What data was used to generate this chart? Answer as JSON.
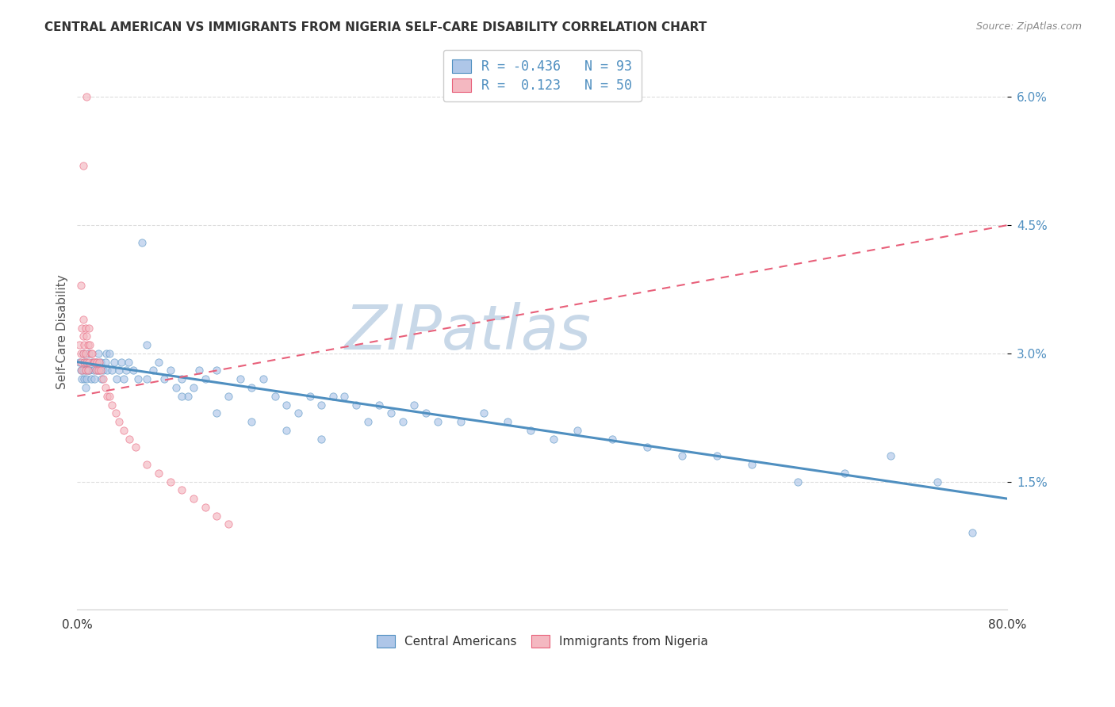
{
  "title": "CENTRAL AMERICAN VS IMMIGRANTS FROM NIGERIA SELF-CARE DISABILITY CORRELATION CHART",
  "source": "Source: ZipAtlas.com",
  "ylabel": "Self-Care Disability",
  "ytick_vals": [
    0.015,
    0.03,
    0.045,
    0.06
  ],
  "xlim": [
    0.0,
    0.8
  ],
  "ylim": [
    0.0,
    0.065
  ],
  "legend_entries": [
    {
      "color": "#aec6e8",
      "R": "-0.436",
      "N": "93"
    },
    {
      "color": "#f4b8c1",
      "R": " 0.123",
      "N": "50"
    }
  ],
  "legend_labels": [
    "Central Americans",
    "Immigrants from Nigeria"
  ],
  "blue_scatter_x": [
    0.002,
    0.003,
    0.004,
    0.005,
    0.005,
    0.006,
    0.006,
    0.007,
    0.007,
    0.008,
    0.008,
    0.009,
    0.01,
    0.011,
    0.012,
    0.013,
    0.014,
    0.015,
    0.016,
    0.017,
    0.018,
    0.019,
    0.02,
    0.021,
    0.022,
    0.024,
    0.025,
    0.026,
    0.028,
    0.03,
    0.032,
    0.034,
    0.036,
    0.038,
    0.04,
    0.042,
    0.044,
    0.048,
    0.052,
    0.056,
    0.06,
    0.065,
    0.07,
    0.075,
    0.08,
    0.085,
    0.09,
    0.095,
    0.1,
    0.105,
    0.11,
    0.12,
    0.13,
    0.14,
    0.15,
    0.16,
    0.17,
    0.18,
    0.19,
    0.2,
    0.21,
    0.22,
    0.23,
    0.24,
    0.25,
    0.26,
    0.27,
    0.28,
    0.29,
    0.3,
    0.31,
    0.33,
    0.35,
    0.37,
    0.39,
    0.41,
    0.43,
    0.46,
    0.49,
    0.52,
    0.55,
    0.58,
    0.62,
    0.66,
    0.7,
    0.74,
    0.77,
    0.06,
    0.09,
    0.12,
    0.15,
    0.18,
    0.21
  ],
  "blue_scatter_y": [
    0.029,
    0.028,
    0.027,
    0.03,
    0.028,
    0.027,
    0.029,
    0.028,
    0.026,
    0.029,
    0.027,
    0.028,
    0.03,
    0.028,
    0.027,
    0.029,
    0.028,
    0.027,
    0.029,
    0.028,
    0.03,
    0.028,
    0.029,
    0.027,
    0.028,
    0.029,
    0.03,
    0.028,
    0.03,
    0.028,
    0.029,
    0.027,
    0.028,
    0.029,
    0.027,
    0.028,
    0.029,
    0.028,
    0.027,
    0.043,
    0.027,
    0.028,
    0.029,
    0.027,
    0.028,
    0.026,
    0.027,
    0.025,
    0.026,
    0.028,
    0.027,
    0.028,
    0.025,
    0.027,
    0.026,
    0.027,
    0.025,
    0.024,
    0.023,
    0.025,
    0.024,
    0.025,
    0.025,
    0.024,
    0.022,
    0.024,
    0.023,
    0.022,
    0.024,
    0.023,
    0.022,
    0.022,
    0.023,
    0.022,
    0.021,
    0.02,
    0.021,
    0.02,
    0.019,
    0.018,
    0.018,
    0.017,
    0.015,
    0.016,
    0.018,
    0.015,
    0.009,
    0.031,
    0.025,
    0.023,
    0.022,
    0.021,
    0.02
  ],
  "pink_scatter_x": [
    0.002,
    0.003,
    0.003,
    0.004,
    0.004,
    0.005,
    0.005,
    0.005,
    0.006,
    0.006,
    0.007,
    0.007,
    0.007,
    0.008,
    0.008,
    0.009,
    0.009,
    0.01,
    0.01,
    0.011,
    0.012,
    0.013,
    0.014,
    0.015,
    0.016,
    0.017,
    0.018,
    0.019,
    0.02,
    0.022,
    0.024,
    0.026,
    0.028,
    0.03,
    0.033,
    0.036,
    0.04,
    0.045,
    0.05,
    0.06,
    0.07,
    0.08,
    0.09,
    0.1,
    0.11,
    0.12,
    0.13,
    0.003,
    0.005,
    0.008
  ],
  "pink_scatter_y": [
    0.031,
    0.03,
    0.029,
    0.033,
    0.028,
    0.032,
    0.03,
    0.034,
    0.031,
    0.029,
    0.033,
    0.03,
    0.028,
    0.032,
    0.029,
    0.031,
    0.028,
    0.033,
    0.029,
    0.031,
    0.03,
    0.03,
    0.029,
    0.029,
    0.028,
    0.029,
    0.028,
    0.029,
    0.028,
    0.027,
    0.026,
    0.025,
    0.025,
    0.024,
    0.023,
    0.022,
    0.021,
    0.02,
    0.019,
    0.017,
    0.016,
    0.015,
    0.014,
    0.013,
    0.012,
    0.011,
    0.01,
    0.038,
    0.052,
    0.06
  ],
  "blue_line_x": [
    0.0,
    0.8
  ],
  "blue_line_y": [
    0.029,
    0.013
  ],
  "pink_line_x": [
    0.0,
    0.8
  ],
  "pink_line_y": [
    0.025,
    0.045
  ],
  "scatter_alpha": 0.65,
  "scatter_size": 45,
  "blue_color": "#4f8fc0",
  "pink_color": "#e8607a",
  "blue_fill": "#aec6e8",
  "pink_fill": "#f4b8c1",
  "watermark": "ZIPatlas",
  "watermark_color": "#c8d8e8",
  "background_color": "#ffffff",
  "grid_color": "#dddddd"
}
